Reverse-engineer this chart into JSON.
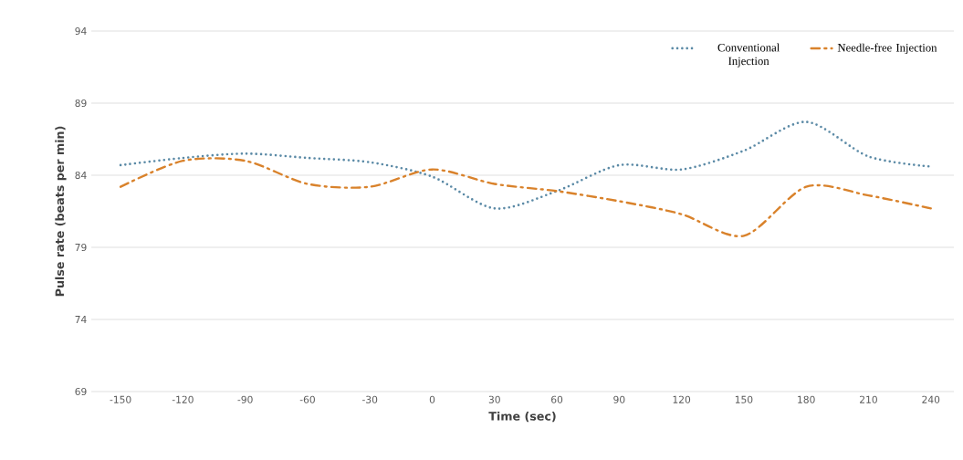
{
  "chart_data": {
    "type": "line",
    "xlabel": "Time (sec)",
    "ylabel": "Pulse rate (beats per min)",
    "categories": [
      "-150",
      "-120",
      "-90",
      "-60",
      "-30",
      "0",
      "30",
      "60",
      "90",
      "120",
      "150",
      "180",
      "210",
      "240"
    ],
    "series": [
      {
        "name": "Conventional Injection",
        "color": "#5b8aa6",
        "line_style": "dotted",
        "values": [
          84.7,
          85.2,
          85.5,
          85.2,
          84.9,
          83.9,
          81.7,
          82.9,
          84.7,
          84.4,
          85.7,
          87.7,
          85.3,
          84.6
        ]
      },
      {
        "name": "Needle-free Injection",
        "color": "#d9822b",
        "line_style": "dashdot",
        "values": [
          83.2,
          85.0,
          85.0,
          83.4,
          83.2,
          84.4,
          83.4,
          82.9,
          82.2,
          81.3,
          79.8,
          83.2,
          82.6,
          81.7
        ]
      }
    ],
    "ylim": [
      69,
      94
    ],
    "yticks": [
      69,
      74,
      79,
      84,
      89,
      94
    ],
    "grid": "y",
    "legend": "top right",
    "marker": "none"
  }
}
